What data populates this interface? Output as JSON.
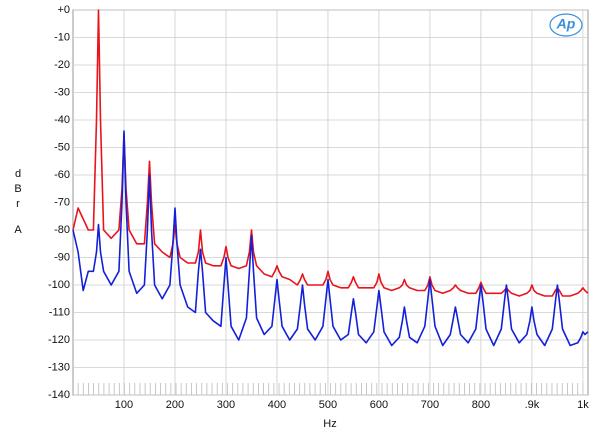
{
  "chart_data": {
    "type": "line",
    "x_label": "Hz",
    "y_label": "dBr",
    "y_label_unit": "A",
    "logo": "Ap",
    "xlim": [
      0,
      1010
    ],
    "ylim": [
      -140,
      0
    ],
    "xticks": [
      100,
      200,
      300,
      400,
      500,
      600,
      700,
      800,
      {
        "value": 900,
        "label": ".9k"
      },
      {
        "value": 1000,
        "label": "1k"
      }
    ],
    "yticks": [
      {
        "value": 0,
        "label": "+0"
      },
      -10,
      -20,
      -30,
      -40,
      -50,
      -60,
      -70,
      -80,
      -90,
      -100,
      -110,
      -120,
      -130,
      -140
    ],
    "grid": true,
    "x": [
      0,
      10,
      20,
      30,
      40,
      46,
      50,
      54,
      60,
      75,
      90,
      96,
      100,
      104,
      110,
      125,
      140,
      146,
      150,
      154,
      160,
      175,
      190,
      196,
      200,
      204,
      210,
      225,
      240,
      246,
      250,
      254,
      260,
      275,
      290,
      296,
      300,
      304,
      310,
      325,
      340,
      346,
      350,
      354,
      360,
      375,
      390,
      396,
      400,
      404,
      410,
      425,
      440,
      446,
      450,
      454,
      460,
      475,
      490,
      496,
      500,
      504,
      510,
      525,
      540,
      546,
      550,
      554,
      560,
      575,
      590,
      596,
      600,
      604,
      610,
      625,
      640,
      646,
      650,
      654,
      660,
      675,
      690,
      696,
      700,
      704,
      710,
      725,
      740,
      746,
      750,
      754,
      760,
      775,
      790,
      796,
      800,
      804,
      810,
      825,
      840,
      846,
      850,
      854,
      860,
      875,
      890,
      896,
      900,
      904,
      910,
      925,
      940,
      946,
      950,
      954,
      960,
      975,
      990,
      996,
      1000,
      1004,
      1010
    ],
    "series": [
      {
        "color": "#e8141c",
        "values": [
          -80,
          -72,
          -76,
          -80,
          -80,
          -40,
          0,
          -40,
          -80,
          -83,
          -80,
          -65,
          -45,
          -65,
          -80,
          -85,
          -85,
          -70,
          -55,
          -70,
          -85,
          -88,
          -90,
          -85,
          -78,
          -85,
          -90,
          -92,
          -92,
          -88,
          -80,
          -88,
          -92,
          -93,
          -93,
          -90,
          -86,
          -90,
          -93,
          -94,
          -93,
          -88,
          -80,
          -88,
          -93,
          -96,
          -97,
          -95,
          -93,
          -95,
          -97,
          -98,
          -100,
          -98,
          -96,
          -98,
          -100,
          -100,
          -100,
          -98,
          -95,
          -98,
          -100,
          -101,
          -101,
          -99,
          -97,
          -99,
          -101,
          -101,
          -101,
          -99,
          -96,
          -99,
          -101,
          -102,
          -101,
          -100,
          -98,
          -100,
          -101,
          -102,
          -102,
          -100,
          -97,
          -100,
          -102,
          -103,
          -102,
          -101,
          -100,
          -101,
          -102,
          -103,
          -103,
          -101,
          -99,
          -101,
          -103,
          -103,
          -103,
          -102,
          -101,
          -102,
          -103,
          -104,
          -103,
          -102,
          -100,
          -102,
          -103,
          -104,
          -104,
          -102,
          -101,
          -102,
          -104,
          -104,
          -103,
          -102,
          -101,
          -102,
          -103
        ]
      },
      {
        "color": "#1420d8",
        "values": [
          -80,
          -88,
          -102,
          -95,
          -95,
          -88,
          -78,
          -88,
          -95,
          -100,
          -95,
          -70,
          -44,
          -70,
          -95,
          -103,
          -100,
          -80,
          -60,
          -80,
          -100,
          -105,
          -100,
          -85,
          -72,
          -85,
          -100,
          -108,
          -110,
          -95,
          -87,
          -95,
          -110,
          -113,
          -115,
          -100,
          -90,
          -100,
          -115,
          -120,
          -112,
          -95,
          -82,
          -95,
          -112,
          -118,
          -115,
          -105,
          -98,
          -105,
          -115,
          -120,
          -116,
          -107,
          -100,
          -107,
          -116,
          -120,
          -115,
          -105,
          -98,
          -105,
          -115,
          -120,
          -118,
          -110,
          -105,
          -110,
          -118,
          -121,
          -117,
          -108,
          -102,
          -108,
          -117,
          -122,
          -119,
          -113,
          -108,
          -113,
          -119,
          -121,
          -115,
          -105,
          -98,
          -105,
          -115,
          -122,
          -118,
          -112,
          -108,
          -112,
          -118,
          -121,
          -116,
          -106,
          -100,
          -106,
          -116,
          -122,
          -116,
          -106,
          -100,
          -106,
          -116,
          -121,
          -118,
          -113,
          -108,
          -113,
          -118,
          -122,
          -116,
          -106,
          -100,
          -106,
          -116,
          -122,
          -121,
          -119,
          -117,
          -118,
          -117
        ]
      }
    ]
  }
}
